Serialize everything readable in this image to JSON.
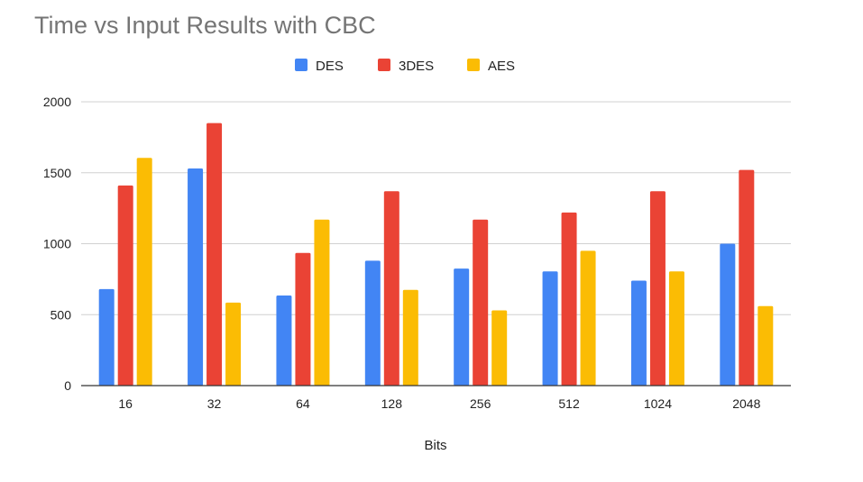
{
  "chart_data": {
    "type": "bar",
    "title": "Time vs Input Results with CBC",
    "xlabel": "Bits",
    "ylabel": "",
    "categories": [
      "16",
      "32",
      "64",
      "128",
      "256",
      "512",
      "1024",
      "2048"
    ],
    "series": [
      {
        "name": "DES",
        "color": "#4285F4",
        "values": [
          680,
          1530,
          635,
          880,
          825,
          805,
          740,
          1000
        ]
      },
      {
        "name": "3DES",
        "color": "#EA4335",
        "values": [
          1410,
          1850,
          935,
          1370,
          1170,
          1220,
          1370,
          1520
        ]
      },
      {
        "name": "AES",
        "color": "#FBBC04",
        "values": [
          1605,
          585,
          1170,
          675,
          530,
          950,
          805,
          560
        ]
      }
    ],
    "ylim": [
      0,
      2000
    ],
    "yticks": [
      0,
      500,
      1000,
      1500,
      2000
    ],
    "grid": true,
    "legend_position": "top-center"
  }
}
